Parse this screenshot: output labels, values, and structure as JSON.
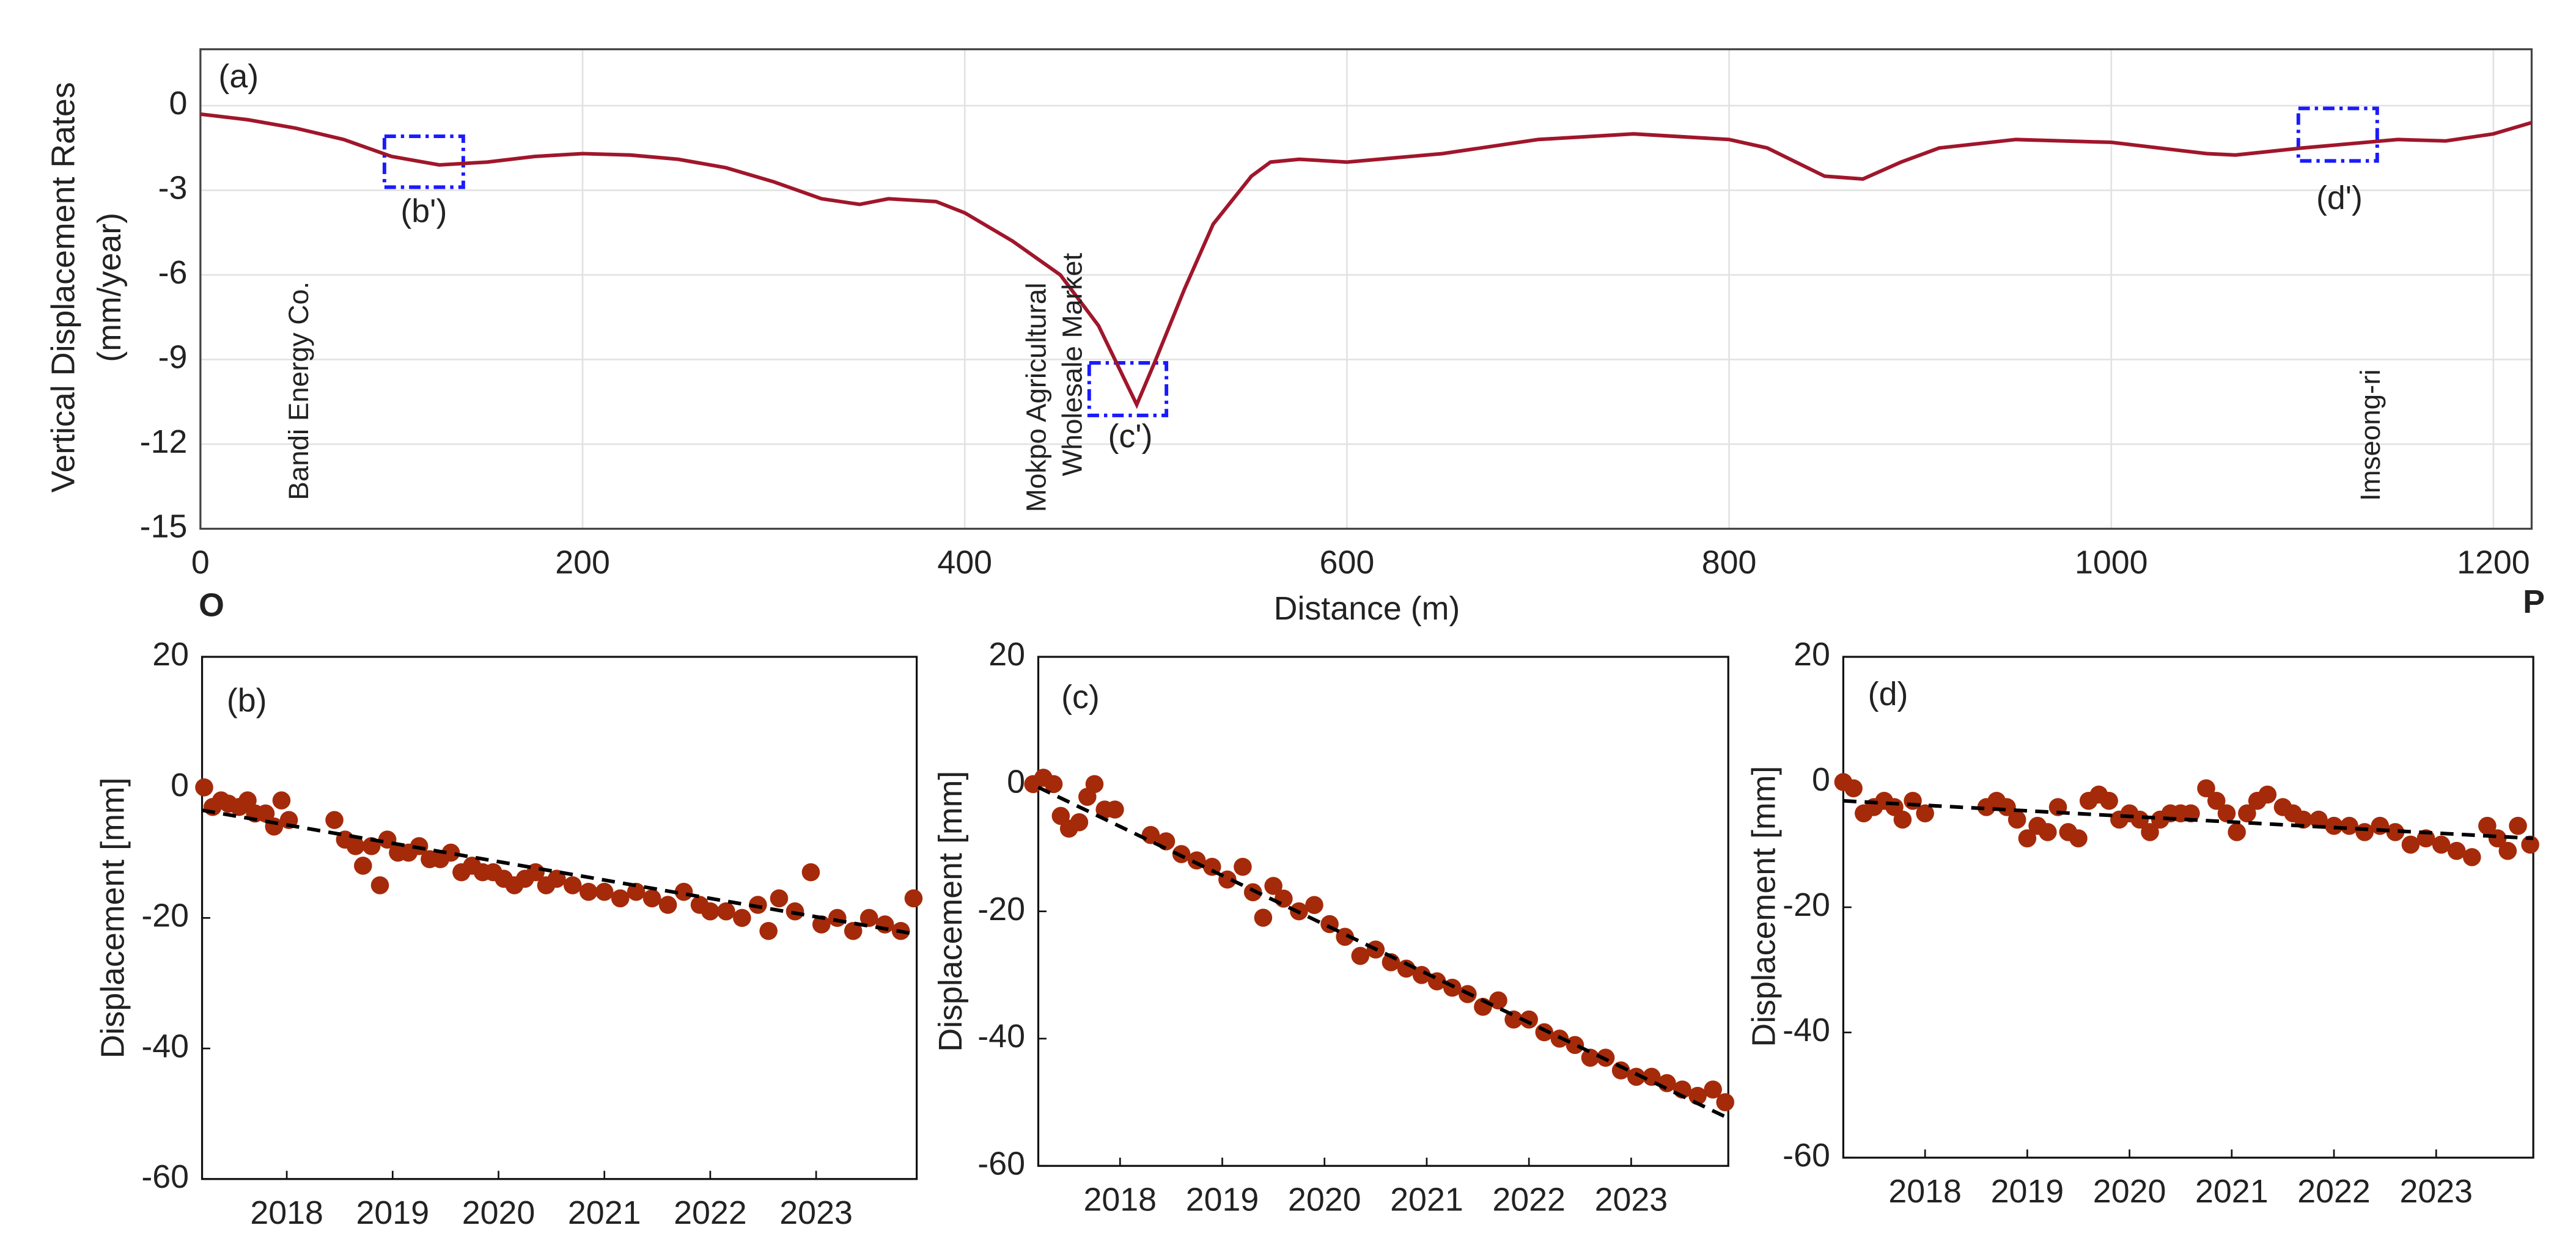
{
  "chart_data": [
    {
      "type": "line",
      "label": "(a)",
      "ylabel": [
        "Vertical Displacement Rates",
        "(mm/year)"
      ],
      "xlabel": "Distance (m)",
      "x": [
        0,
        25,
        50,
        75,
        100,
        125,
        150,
        175,
        200,
        225,
        250,
        275,
        300,
        325,
        345,
        360,
        385,
        400,
        425,
        450,
        470,
        490,
        500,
        515,
        530,
        550,
        560,
        575,
        600,
        650,
        700,
        750,
        800,
        820,
        835,
        850,
        870,
        890,
        910,
        950,
        1000,
        1050,
        1065,
        1100,
        1150,
        1175,
        1200,
        1220
      ],
      "values": [
        -0.3,
        -0.5,
        -0.8,
        -1.2,
        -1.8,
        -2.1,
        -2.0,
        -1.8,
        -1.7,
        -1.75,
        -1.9,
        -2.2,
        -2.7,
        -3.3,
        -3.5,
        -3.3,
        -3.4,
        -3.8,
        -4.8,
        -6.0,
        -7.8,
        -10.6,
        -9.0,
        -6.5,
        -4.2,
        -2.5,
        -2.0,
        -1.9,
        -2.0,
        -1.7,
        -1.2,
        -1.0,
        -1.2,
        -1.5,
        -2.0,
        -2.5,
        -2.6,
        -2.0,
        -1.5,
        -1.2,
        -1.3,
        -1.7,
        -1.75,
        -1.5,
        -1.2,
        -1.25,
        -1.0,
        -0.6
      ],
      "color": "#a0162b",
      "xlim": [
        0,
        1220
      ],
      "xticks": [
        0,
        200,
        400,
        600,
        800,
        1000,
        1200
      ],
      "ylim": [
        -15,
        2
      ],
      "yticks": [
        -15,
        -12,
        -9,
        -6,
        -3,
        0
      ],
      "grid": true,
      "box_labels": [
        "(b')",
        "(c')",
        "(d')"
      ],
      "site_labels": [
        "Bandi Energy Co.",
        "Mokpo Agricultural",
        "Wholesale Market",
        "Imseong-ri"
      ],
      "ends": [
        "O",
        "P"
      ]
    },
    {
      "type": "scatter",
      "label": "(b)",
      "ylabel": "Displacement [mm]",
      "x": [
        2017.22,
        2017.3,
        2017.38,
        2017.45,
        2017.55,
        2017.63,
        2017.7,
        2017.8,
        2017.88,
        2017.95,
        2018.02,
        2018.45,
        2018.55,
        2018.65,
        2018.72,
        2018.8,
        2018.88,
        2018.95,
        2019.05,
        2019.15,
        2019.25,
        2019.35,
        2019.45,
        2019.55,
        2019.65,
        2019.75,
        2019.85,
        2019.95,
        2020.05,
        2020.15,
        2020.25,
        2020.35,
        2020.45,
        2020.55,
        2020.7,
        2020.85,
        2021.0,
        2021.15,
        2021.3,
        2021.45,
        2021.6,
        2021.75,
        2021.9,
        2022.0,
        2022.15,
        2022.3,
        2022.45,
        2022.55,
        2022.65,
        2022.8,
        2022.95,
        2023.05,
        2023.2,
        2023.35,
        2023.5,
        2023.65,
        2023.8,
        2023.92
      ],
      "values": [
        0,
        -3,
        -2,
        -2.5,
        -3,
        -2,
        -4,
        -4,
        -6,
        -2,
        -5,
        -5,
        -8,
        -9,
        -12,
        -9,
        -15,
        -8,
        -10,
        -10,
        -9,
        -11,
        -11,
        -10,
        -13,
        -12,
        -13,
        -13,
        -14,
        -15,
        -14,
        -13,
        -15,
        -14,
        -15,
        -16,
        -16,
        -17,
        -16,
        -17,
        -18,
        -16,
        -18,
        -19,
        -19,
        -20,
        -18,
        -22,
        -17,
        -19,
        -13,
        -21,
        -20,
        -22,
        -20,
        -21,
        -22,
        -17
      ],
      "color": "#a52a0a",
      "trend": {
        "x": [
          2017.2,
          2023.95
        ],
        "values": [
          -3.5,
          -22.5
        ],
        "color": "#000000"
      },
      "xlim": [
        2017.2,
        2023.95
      ],
      "xticks": [
        2018,
        2019,
        2020,
        2021,
        2022,
        2023
      ],
      "ylim": [
        -60,
        20
      ],
      "yticks": [
        -60,
        -40,
        -20,
        0,
        20
      ],
      "grid": false
    },
    {
      "type": "scatter",
      "label": "(c)",
      "ylabel": "Displacement [mm]",
      "x": [
        2017.15,
        2017.25,
        2017.35,
        2017.42,
        2017.5,
        2017.6,
        2017.68,
        2017.75,
        2017.85,
        2017.95,
        2018.3,
        2018.45,
        2018.6,
        2018.75,
        2018.9,
        2019.05,
        2019.2,
        2019.3,
        2019.4,
        2019.5,
        2019.6,
        2019.75,
        2019.9,
        2020.05,
        2020.2,
        2020.35,
        2020.5,
        2020.65,
        2020.8,
        2020.95,
        2021.1,
        2021.25,
        2021.4,
        2021.55,
        2021.7,
        2021.85,
        2022.0,
        2022.15,
        2022.3,
        2022.45,
        2022.6,
        2022.75,
        2022.9,
        2023.05,
        2023.2,
        2023.35,
        2023.5,
        2023.65,
        2023.8,
        2023.92
      ],
      "values": [
        0,
        1,
        0,
        -5,
        -7,
        -6,
        -2,
        0,
        -4,
        -4,
        -8,
        -9,
        -11,
        -12,
        -13,
        -15,
        -13,
        -17,
        -21,
        -16,
        -18,
        -20,
        -19,
        -22,
        -24,
        -27,
        -26,
        -28,
        -29,
        -30,
        -31,
        -32,
        -33,
        -35,
        -34,
        -37,
        -37,
        -39,
        -40,
        -41,
        -43,
        -43,
        -45,
        -46,
        -46,
        -47,
        -48,
        -49,
        -48,
        -50
      ],
      "color": "#a52a0a",
      "trend": {
        "x": [
          2017.2,
          2023.95
        ],
        "values": [
          -0.5,
          -52.5
        ],
        "color": "#000000"
      },
      "xlim": [
        2017.2,
        2023.95
      ],
      "xticks": [
        2018,
        2019,
        2020,
        2021,
        2022,
        2023
      ],
      "ylim": [
        -60,
        20
      ],
      "yticks": [
        -60,
        -40,
        -20,
        0,
        20
      ],
      "grid": false
    },
    {
      "type": "scatter",
      "label": "(d)",
      "ylabel": "Displacement [mm]",
      "x": [
        2017.2,
        2017.3,
        2017.4,
        2017.5,
        2017.6,
        2017.7,
        2017.78,
        2017.88,
        2018.0,
        2018.6,
        2018.7,
        2018.8,
        2018.9,
        2019.0,
        2019.1,
        2019.2,
        2019.3,
        2019.4,
        2019.5,
        2019.6,
        2019.7,
        2019.8,
        2019.9,
        2020.0,
        2020.1,
        2020.2,
        2020.3,
        2020.4,
        2020.5,
        2020.6,
        2020.75,
        2020.85,
        2020.95,
        2021.05,
        2021.15,
        2021.25,
        2021.35,
        2021.5,
        2021.6,
        2021.7,
        2021.85,
        2022.0,
        2022.15,
        2022.3,
        2022.45,
        2022.6,
        2022.75,
        2022.9,
        2023.05,
        2023.2,
        2023.35,
        2023.5,
        2023.6,
        2023.7,
        2023.8,
        2023.92
      ],
      "values": [
        0,
        -1,
        -5,
        -4,
        -3,
        -4,
        -6,
        -3,
        -5,
        -4,
        -3,
        -4,
        -6,
        -9,
        -7,
        -8,
        -4,
        -8,
        -9,
        -3,
        -2,
        -3,
        -6,
        -5,
        -6,
        -8,
        -6,
        -5,
        -5,
        -5,
        -1,
        -3,
        -5,
        -8,
        -5,
        -3,
        -2,
        -4,
        -5,
        -6,
        -6,
        -7,
        -7,
        -8,
        -7,
        -8,
        -10,
        -9,
        -10,
        -11,
        -12,
        -7,
        -9,
        -11,
        -7,
        -10
      ],
      "color": "#a52a0a",
      "trend": {
        "x": [
          2017.2,
          2023.95
        ],
        "values": [
          -3,
          -9
        ],
        "color": "#000000"
      },
      "xlim": [
        2017.2,
        2023.95
      ],
      "xticks": [
        2018,
        2019,
        2020,
        2021,
        2022,
        2023
      ],
      "ylim": [
        -60,
        20
      ],
      "yticks": [
        -60,
        -40,
        -20,
        0,
        20
      ],
      "grid": false
    }
  ]
}
